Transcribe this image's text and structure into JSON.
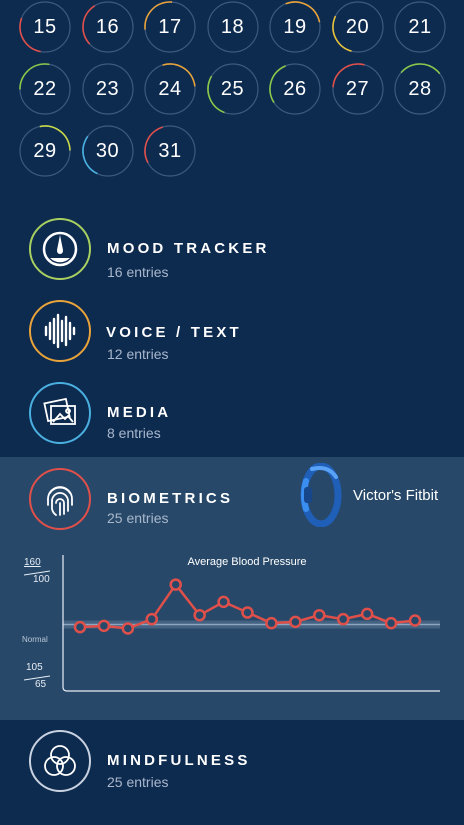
{
  "calendar": {
    "days": [
      {
        "label": "15",
        "accent": "#e0504a"
      },
      {
        "label": "16",
        "accent": "#e0504a"
      },
      {
        "label": "17",
        "accent": "#e8a33a"
      },
      {
        "label": "18",
        "accent": ""
      },
      {
        "label": "19",
        "accent": "#e8a33a"
      },
      {
        "label": "20",
        "accent": "#e8c23a"
      },
      {
        "label": "21",
        "accent": ""
      },
      {
        "label": "22",
        "accent": "#8ac84a"
      },
      {
        "label": "23",
        "accent": ""
      },
      {
        "label": "24",
        "accent": "#e8a33a"
      },
      {
        "label": "25",
        "accent": "#8ac84a"
      },
      {
        "label": "26",
        "accent": "#8ac84a"
      },
      {
        "label": "27",
        "accent": "#e0504a"
      },
      {
        "label": "28",
        "accent": "#8ac84a"
      },
      {
        "label": "29",
        "accent": "#c8d84a"
      },
      {
        "label": "30",
        "accent": "#4ab0e0"
      },
      {
        "label": "31",
        "accent": "#e0504a"
      }
    ]
  },
  "categories": {
    "mood": {
      "title": "MOOD TRACKER",
      "entries": "16 entries",
      "icon": "gauge-icon",
      "color": "#a8d060"
    },
    "voice": {
      "title": "VOICE / TEXT",
      "entries": "12 entries",
      "icon": "sound-wave-icon",
      "color": "#e8a33a"
    },
    "media": {
      "title": "MEDIA",
      "entries": "8 entries",
      "icon": "photos-icon",
      "color": "#4ab0e0"
    },
    "biometrics": {
      "title": "BIOMETRICS",
      "entries": "25 entries",
      "icon": "fingerprint-icon",
      "color": "#e0504a"
    },
    "mindfulness": {
      "title": "MINDFULNESS",
      "entries": "25 entries",
      "icon": "venn-circles-icon",
      "color": "#c8d2e0"
    }
  },
  "device": {
    "label": "Victor's Fitbit",
    "icon": "fitbit-band-icon",
    "color": "#2f7fe0"
  },
  "chart_data": {
    "type": "line",
    "title": "Average Blood Pressure",
    "y_top_label": {
      "num": "160",
      "den": "100"
    },
    "y_bottom_label": {
      "num": "105",
      "den": "65"
    },
    "normal_label": "Normal",
    "ylim": [
      0,
      100
    ],
    "normal_level": 50,
    "values": [
      48,
      49,
      47,
      54,
      80,
      57,
      67,
      59,
      51,
      52,
      57,
      54,
      58,
      51,
      53
    ],
    "line_color": "#e0504a",
    "grid": false
  }
}
